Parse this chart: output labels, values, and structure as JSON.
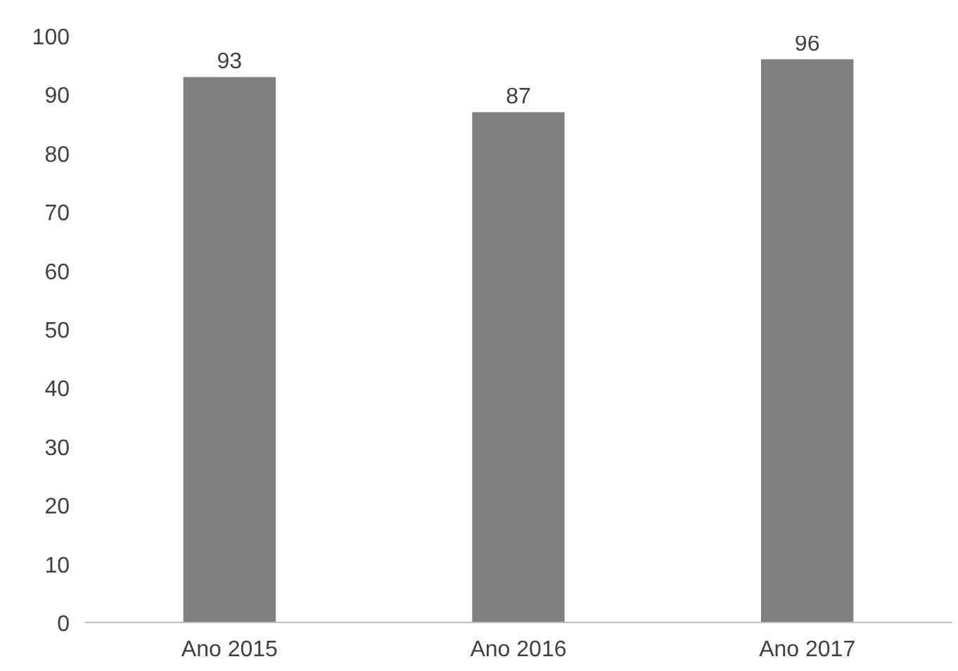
{
  "chart_data": {
    "type": "bar",
    "categories": [
      "Ano 2015",
      "Ano 2016",
      "Ano 2017"
    ],
    "values": [
      93,
      87,
      96
    ],
    "color": "#808080",
    "ylim": [
      0,
      100
    ],
    "yticks": [
      0,
      10,
      20,
      30,
      40,
      50,
      60,
      70,
      80,
      90,
      100
    ],
    "grid": false,
    "data_labels": true
  }
}
